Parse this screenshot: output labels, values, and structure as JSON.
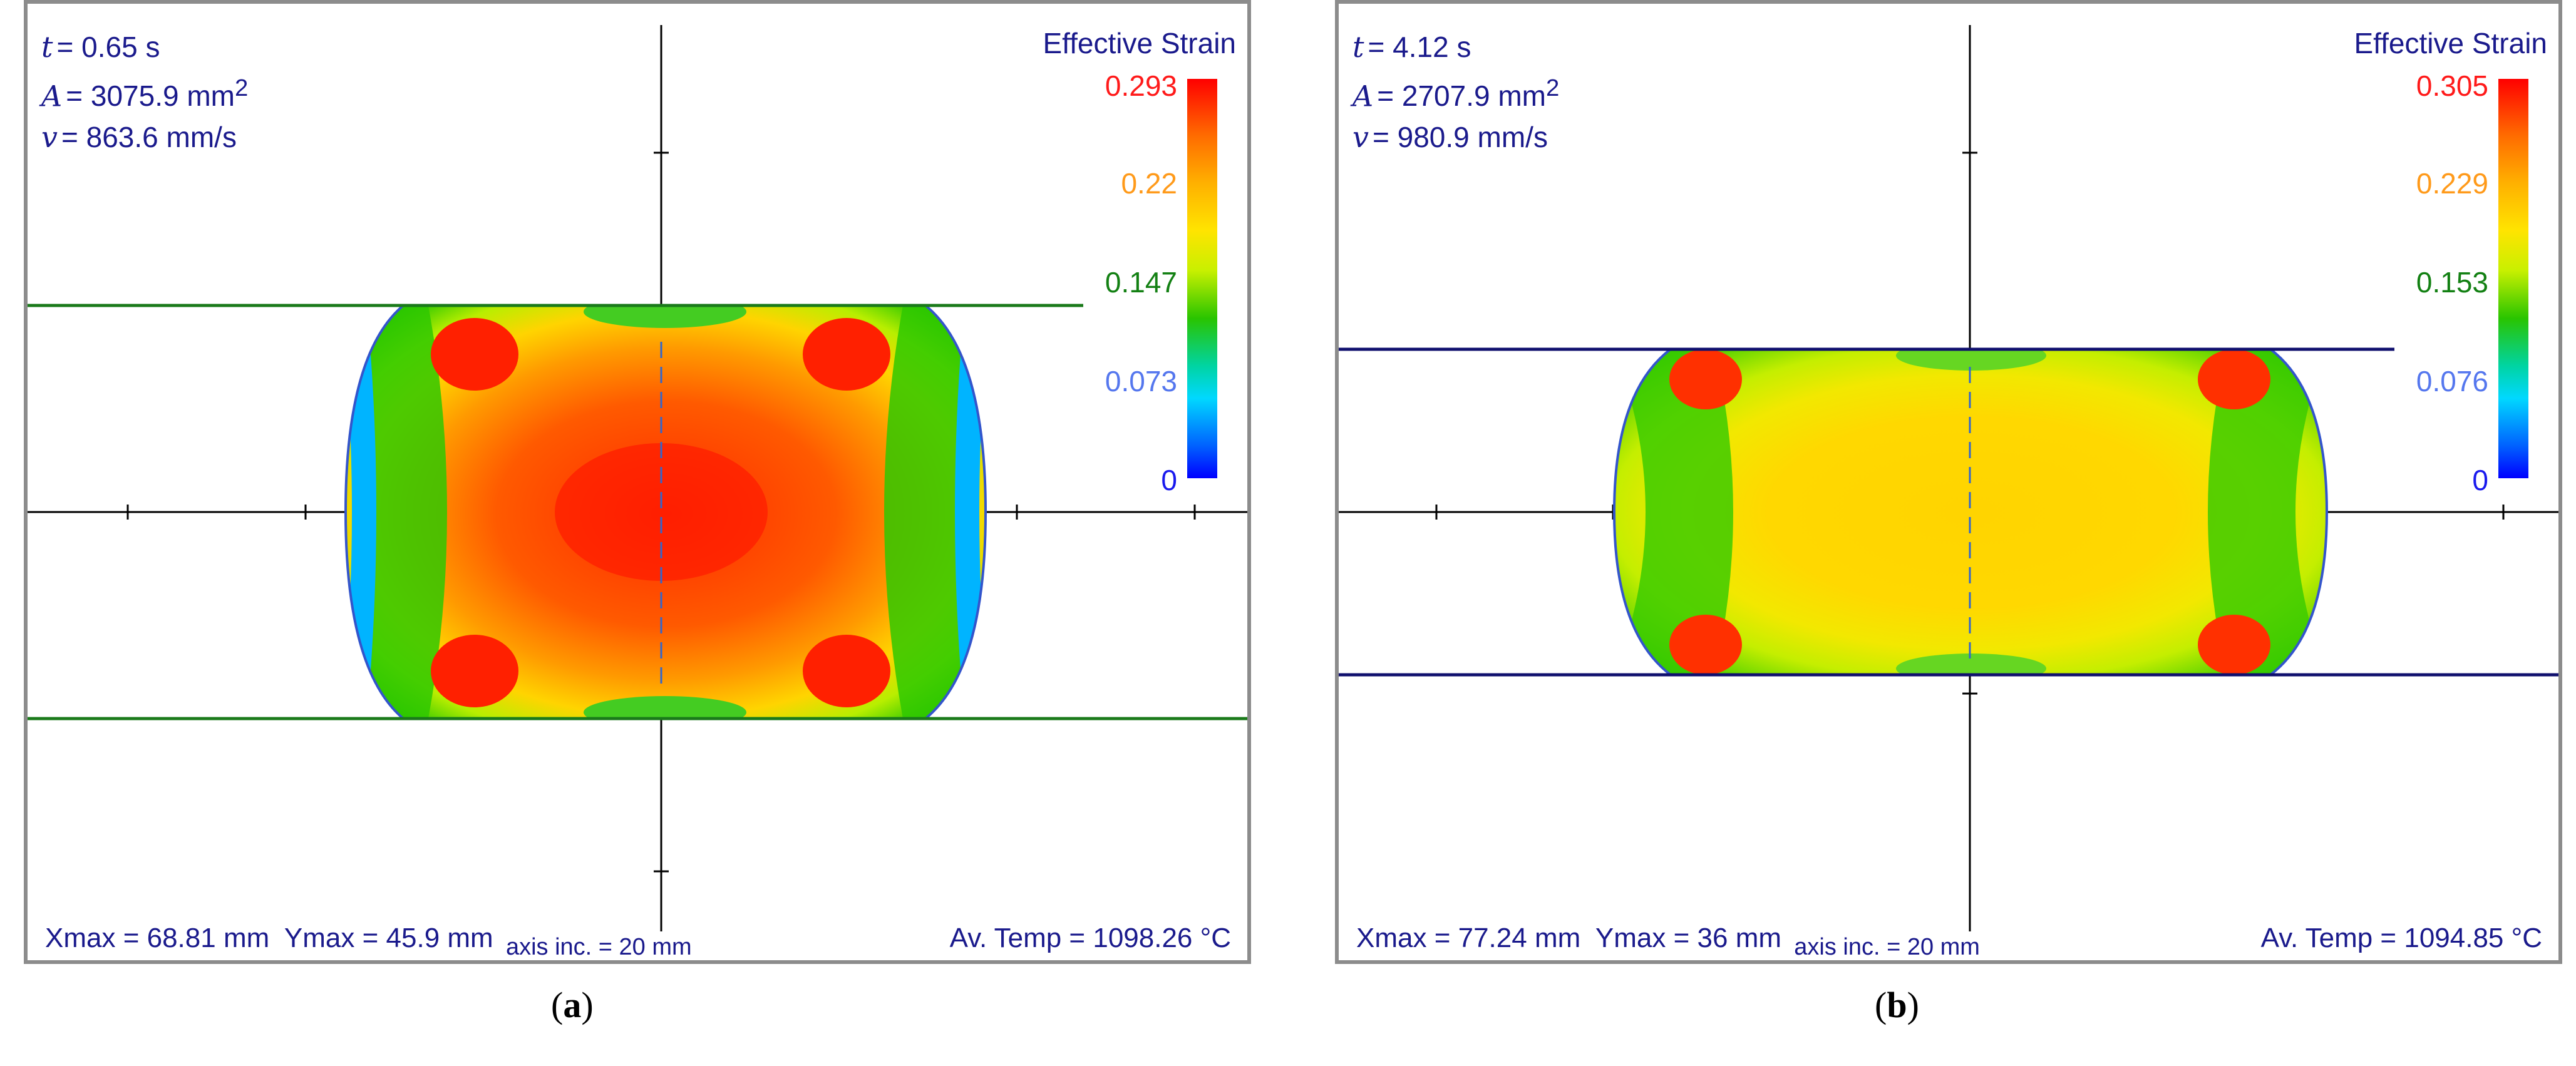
{
  "panels": [
    {
      "id": "a",
      "caption_letter": "a",
      "time_symbol": "t",
      "time_value": "= 0.65 s",
      "area_symbol": "A",
      "area_value": "= 3075.9 mm",
      "area_exp": "2",
      "velocity_symbol": "v",
      "velocity_value": "= 863.6 mm/s",
      "colorbar_title": "Effective Strain",
      "colorbar_labels": [
        "0.293",
        "0.22",
        "0.147",
        "0.073",
        "0"
      ],
      "colorbar_label_colors": [
        "#ff1a1a",
        "#ff9a1a",
        "#138013",
        "#5577ee",
        "#1a1aee"
      ],
      "max_strain": 0.293,
      "die_line_color": "#1a7a1a",
      "xmax_text": "Xmax = 68.81 mm",
      "ymax_text": "Ymax = 45.9 mm",
      "axis_inc_text": "axis inc. = 20 mm",
      "avtemp_text": "Av. Temp = 1098.26 °C"
    },
    {
      "id": "b",
      "caption_letter": "b",
      "time_symbol": "t",
      "time_value": "= 4.12 s",
      "area_symbol": "A",
      "area_value": "= 2707.9 mm",
      "area_exp": "2",
      "velocity_symbol": "v",
      "velocity_value": "= 980.9 mm/s",
      "colorbar_title": "Effective Strain",
      "colorbar_labels": [
        "0.305",
        "0.229",
        "0.153",
        "0.076",
        "0"
      ],
      "colorbar_label_colors": [
        "#ff1a1a",
        "#ff9a1a",
        "#138013",
        "#5577ee",
        "#1a1aee"
      ],
      "max_strain": 0.305,
      "die_line_color": "#10106e",
      "xmax_text": "Xmax = 77.24 mm",
      "ymax_text": "Ymax = 36 mm",
      "axis_inc_text": "axis inc. = 20 mm",
      "avtemp_text": "Av. Temp = 1094.85 °C"
    }
  ]
}
